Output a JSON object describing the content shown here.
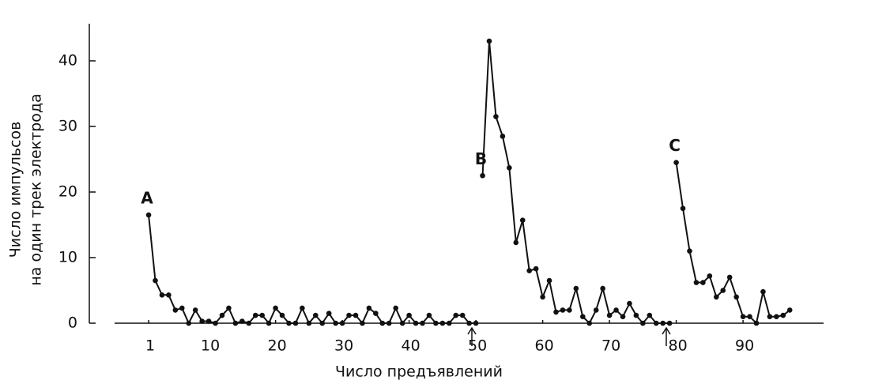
{
  "chart_data": {
    "type": "line",
    "x_label": "Число предъявлений",
    "y_label": [
      "Число импульсов",
      "на один трек электрода"
    ],
    "xlim": [
      -4,
      102
    ],
    "ylim": [
      0,
      46
    ],
    "xticks": [
      1,
      10,
      20,
      30,
      40,
      50,
      60,
      70,
      80,
      90
    ],
    "yticks": [
      0,
      10,
      20,
      30,
      40
    ],
    "series": [
      {
        "label": "A",
        "color": "#111111",
        "x": [
          1,
          2,
          3,
          4,
          5,
          6,
          7,
          8,
          9,
          10,
          11,
          12,
          13,
          14,
          15,
          16,
          17,
          18,
          19,
          20,
          21,
          22,
          23,
          24,
          25,
          26,
          27,
          28,
          29,
          30,
          31,
          32,
          33,
          34,
          35,
          36,
          37,
          38,
          39,
          40,
          41,
          42,
          43,
          44,
          45,
          46,
          47,
          48,
          49,
          50
        ],
        "values": [
          16.5,
          6.5,
          4.3,
          4.3,
          2,
          2.3,
          0,
          2,
          0.3,
          0.3,
          0,
          1.2,
          2.3,
          0,
          0.3,
          0,
          1.2,
          1.2,
          0,
          2.3,
          1.2,
          0,
          0,
          2.3,
          0,
          1.2,
          0,
          1.5,
          0,
          0,
          1.2,
          1.2,
          0,
          2.3,
          1.5,
          0,
          0,
          2.3,
          0,
          1.2,
          0,
          0,
          1.2,
          0,
          0,
          0,
          1.2,
          1.2,
          0,
          0
        ]
      },
      {
        "label": "B",
        "color": "#111111",
        "x": [
          51,
          52,
          53,
          54,
          55,
          56,
          57,
          58,
          59,
          60,
          61,
          62,
          63,
          64,
          65,
          66,
          67,
          68,
          69,
          70,
          71,
          72,
          73,
          74,
          75,
          76,
          77,
          78,
          79
        ],
        "values": [
          22.5,
          43,
          31.5,
          28.5,
          23.7,
          12.3,
          15.7,
          8,
          8.3,
          4,
          6.5,
          1.7,
          2,
          2,
          5.3,
          1,
          0,
          2,
          5.3,
          1.2,
          2,
          1,
          3,
          1.2,
          0,
          1.2,
          0,
          0,
          0
        ]
      },
      {
        "label": "C",
        "color": "#111111",
        "x": [
          80,
          81,
          82,
          83,
          84,
          85,
          86,
          87,
          88,
          89,
          90,
          91,
          92,
          93,
          94,
          95,
          96,
          97
        ],
        "values": [
          24.5,
          17.5,
          11,
          6.2,
          6.2,
          7.2,
          4,
          5,
          7,
          4,
          1,
          1,
          0,
          4.8,
          1,
          1,
          1.2,
          2
        ]
      }
    ]
  }
}
